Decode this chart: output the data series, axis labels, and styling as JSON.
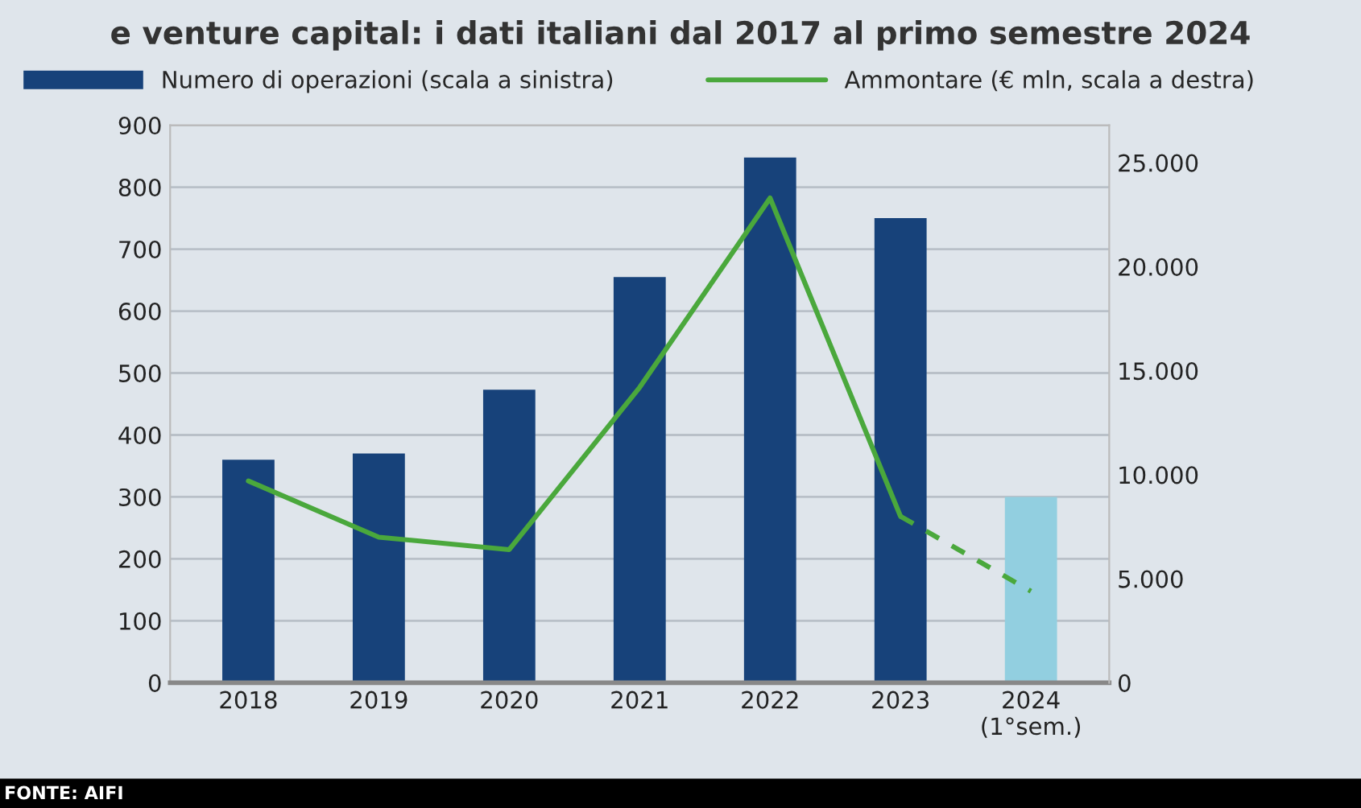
{
  "chart_data": {
    "type": "bar",
    "title": "e venture capital: i dati italiani dal 2017 al primo semestre 2024",
    "categories": [
      "2018",
      "2019",
      "2020",
      "2021",
      "2022",
      "2023",
      "2024\n(1°sem.)"
    ],
    "series": [
      {
        "name": "Numero di operazioni (scala a sinistra)",
        "colors": [
          "#17427a",
          "#17427a",
          "#17427a",
          "#17427a",
          "#17427a",
          "#17427a",
          "#92cfe0"
        ],
        "color": "#17427a",
        "values": [
          360,
          370,
          473,
          655,
          848,
          750,
          300
        ]
      },
      {
        "name": "Ammontare (€ mln, scala a destra)",
        "type": "line",
        "axis": "y2",
        "color": "#4aa83c",
        "line_style": "solid",
        "values": [
          9700,
          7000,
          6400,
          14200,
          23300,
          8000,
          null
        ]
      },
      {
        "type": "line",
        "axis": "y2",
        "color": "#4aa83c",
        "line_style": "dashed",
        "values": [
          null,
          null,
          null,
          null,
          null,
          8000,
          4400
        ]
      }
    ],
    "ylim": [
      0,
      900
    ],
    "yticks": [
      0,
      100,
      200,
      300,
      400,
      500,
      600,
      700,
      800,
      900
    ],
    "y2lim": [
      0,
      26800
    ],
    "y2ticks": [
      0,
      {
        "value": 5000,
        "label": "5.000"
      },
      {
        "value": 10000,
        "label": "10.000"
      },
      {
        "value": 15000,
        "label": "15.000"
      },
      {
        "value": 20000,
        "label": "20.000"
      },
      {
        "value": 25000,
        "label": "25.000"
      }
    ],
    "grid": "y",
    "legend": "top",
    "annotations": [
      "FONTE: AIFI"
    ]
  }
}
